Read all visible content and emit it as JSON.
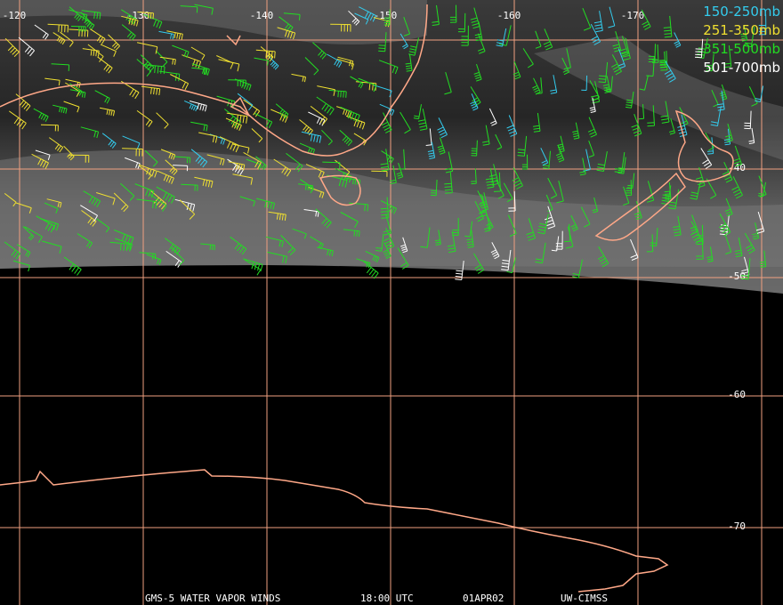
{
  "map": {
    "longitude_labels": [
      -120,
      -130,
      -140,
      -150,
      -160,
      -170
    ],
    "latitude_labels": [
      -40,
      -50,
      -60,
      -70
    ],
    "legend": [
      {
        "label": "150-250mb",
        "color": "#33ccee"
      },
      {
        "label": "251-350mb",
        "color": "#f0e030"
      },
      {
        "label": "351-500mb",
        "color": "#22dd22"
      },
      {
        "label": "501-700mb",
        "color": "#ffffff"
      }
    ],
    "footer": [
      "GMS-5 WATER VAPOR WINDS",
      "18:00 UTC",
      "01APR02",
      "UW-CIMSS"
    ]
  }
}
